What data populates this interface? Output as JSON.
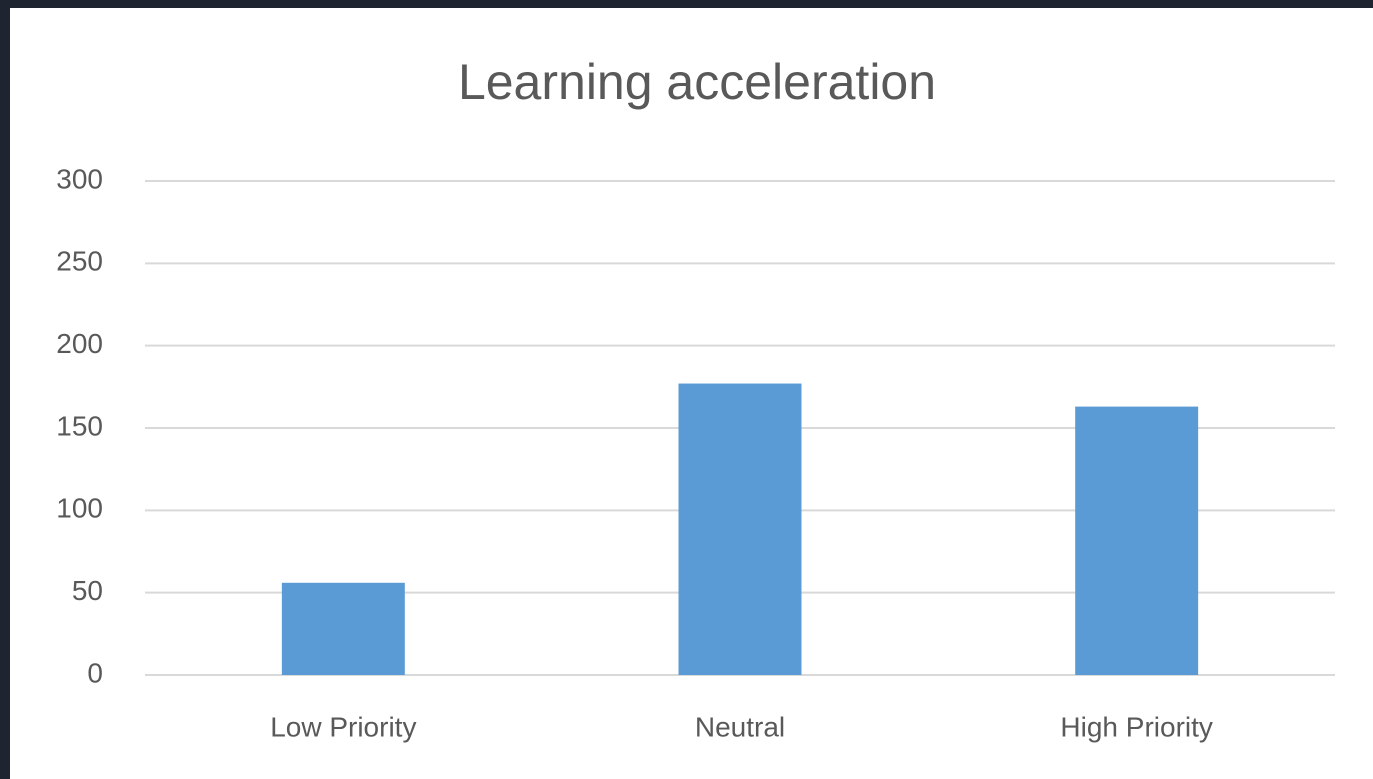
{
  "chart_data": {
    "type": "bar",
    "title": "Learning acceleration",
    "categories": [
      "Low Priority",
      "Neutral",
      "High Priority"
    ],
    "values": [
      56,
      177,
      163
    ],
    "color": "#5b9bd5",
    "ylim": [
      0,
      300
    ],
    "yticks": [
      0,
      50,
      100,
      150,
      200,
      250,
      300
    ],
    "grid": true
  }
}
